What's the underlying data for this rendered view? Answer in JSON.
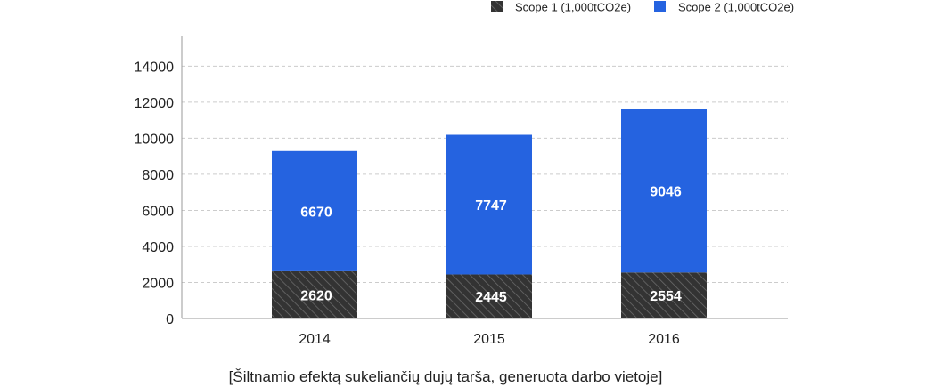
{
  "chart_data": {
    "type": "bar",
    "stacked": true,
    "categories": [
      "2014",
      "2015",
      "2016"
    ],
    "series": [
      {
        "name": "Scope 1 (1,000tCO2e)",
        "values": [
          2620,
          2445,
          2554
        ],
        "color": "#333333",
        "pattern": "diagonal-hatch"
      },
      {
        "name": "Scope 2 (1,000tCO2e)",
        "values": [
          6670,
          7747,
          9046
        ],
        "color": "#2563e0"
      }
    ],
    "data_labels": {
      "Scope 1 (1,000tCO2e)": [
        "2620",
        "2445",
        "2554"
      ],
      "Scope 2 (1,000tCO2e)": [
        "6670",
        "7747",
        "9046"
      ]
    },
    "y_ticks": [
      "0",
      "2000",
      "4000",
      "6000",
      "8000",
      "10000",
      "12000",
      "14000"
    ],
    "ylim": [
      0,
      15000
    ],
    "grid": "horizontal-dashed",
    "legend_position": "top-right",
    "caption": "[Šiltnamio efektą sukeliančių dujų tarša, generuota darbo vietoje]"
  }
}
